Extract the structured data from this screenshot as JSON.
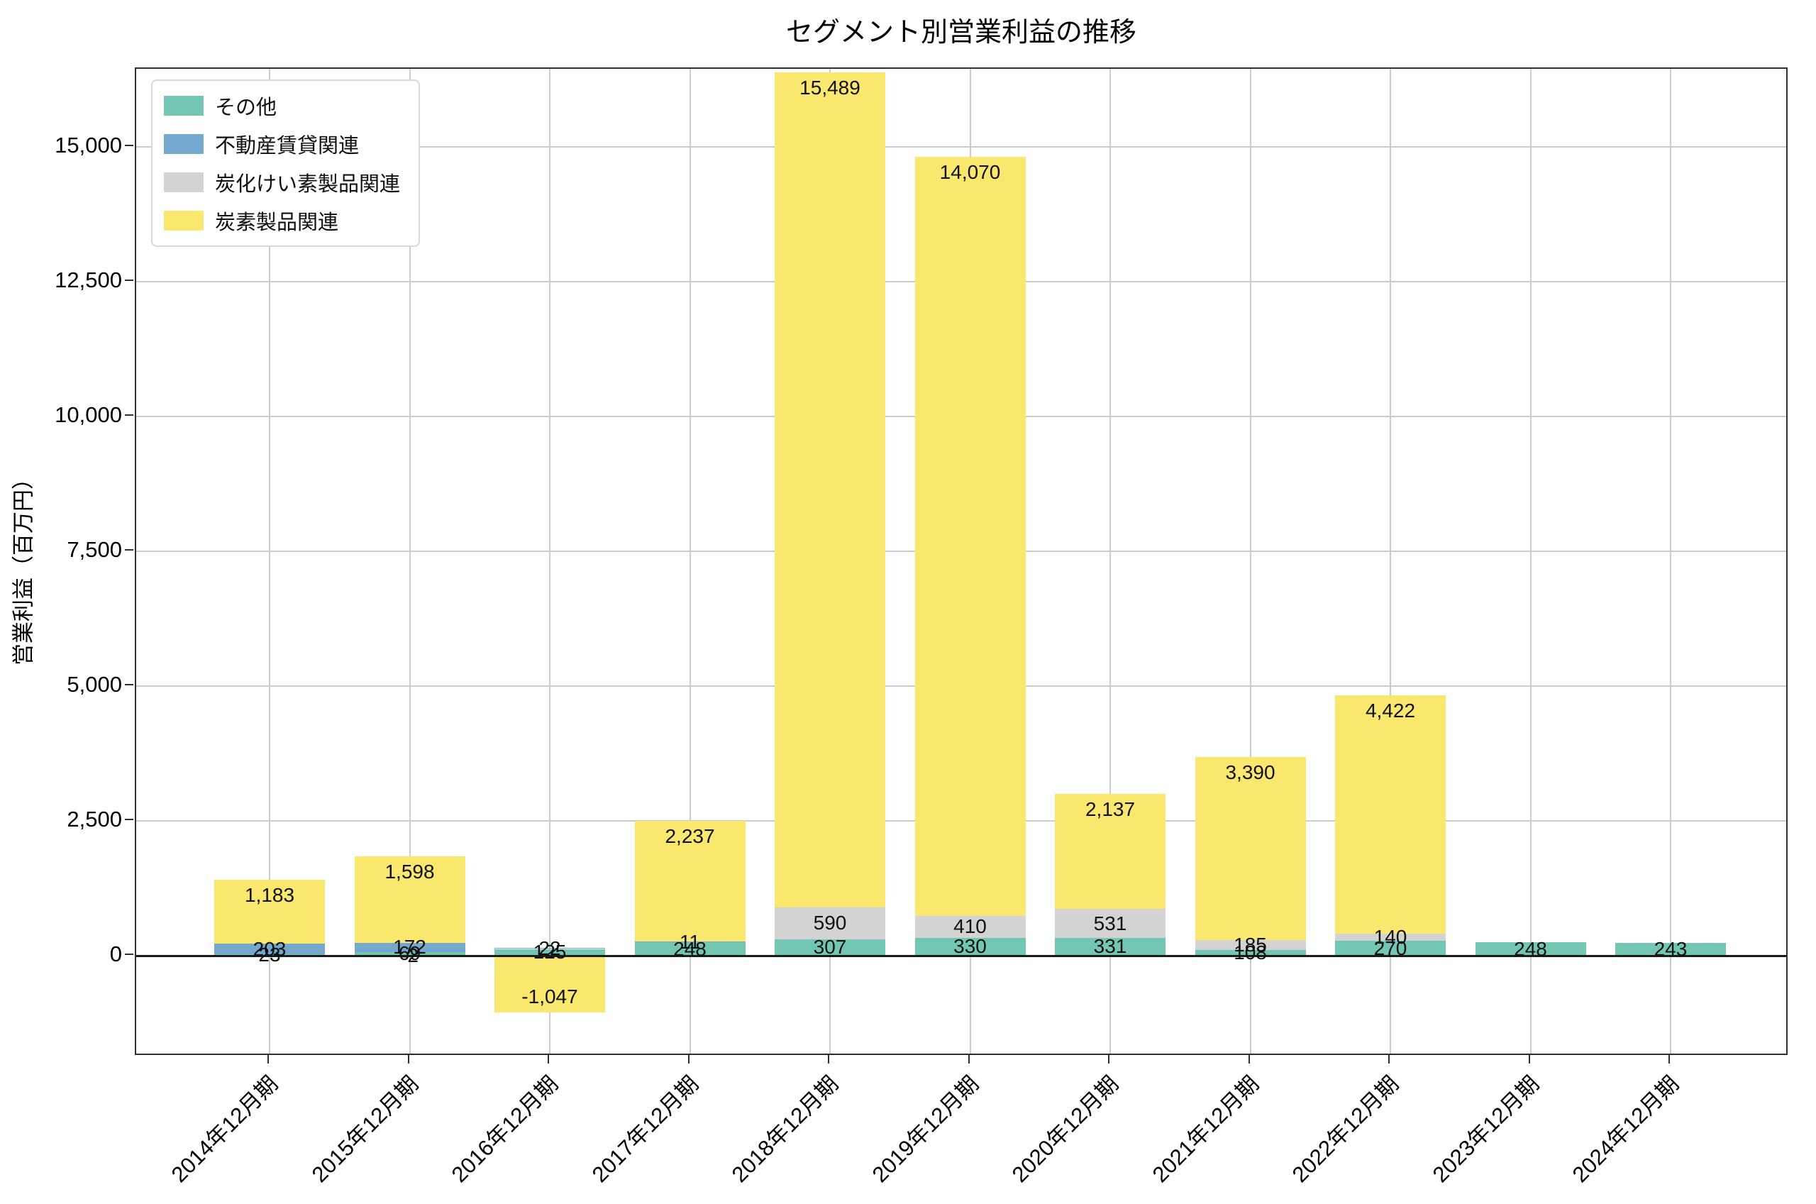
{
  "chart_data": {
    "type": "bar",
    "stacked": true,
    "title": "セグメント別営業利益の推移",
    "ylabel": "営業利益（百万円）",
    "xlabel": "",
    "categories": [
      "2014年12月期",
      "2015年12月期",
      "2016年12月期",
      "2017年12月期",
      "2018年12月期",
      "2019年12月期",
      "2020年12月期",
      "2021年12月期",
      "2022年12月期",
      "2023年12月期",
      "2024年12月期"
    ],
    "series": [
      {
        "name": "その他",
        "color": "#73c6b2",
        "values": [
          23,
          69,
          125,
          248,
          307,
          330,
          331,
          108,
          270,
          248,
          243
        ]
      },
      {
        "name": "不動産賃貸関連",
        "color": "#74a8cf",
        "values": [
          203,
          172,
          22,
          11,
          0,
          0,
          0,
          0,
          0,
          0,
          0
        ]
      },
      {
        "name": "炭化けい素製品関連",
        "color": "#d3d3d3",
        "values": [
          0,
          -2,
          0,
          0,
          590,
          410,
          531,
          185,
          140,
          0,
          0
        ]
      },
      {
        "name": "炭素製品関連",
        "color": "#f9e76e",
        "values": [
          1183,
          1598,
          -1047,
          2237,
          15489,
          14070,
          2137,
          3390,
          4422,
          0,
          0
        ]
      }
    ],
    "yticks": [
      {
        "v": 0,
        "label": "0"
      },
      {
        "v": 2500,
        "label": "2,500"
      },
      {
        "v": 5000,
        "label": "5,000"
      },
      {
        "v": 7500,
        "label": "7,500"
      },
      {
        "v": 10000,
        "label": "10,000"
      },
      {
        "v": 12500,
        "label": "12,500"
      },
      {
        "v": 15000,
        "label": "15,000"
      }
    ],
    "ylim": [
      -1870,
      16450
    ],
    "grid": true,
    "legend_position": "upper-left",
    "bar_value_labels": true
  },
  "colors": {
    "grid": "#cccccc",
    "spine": "#2f2f2f",
    "zero_line": "#1a1a1a",
    "background": "#ffffff",
    "value_label": "#111111"
  }
}
